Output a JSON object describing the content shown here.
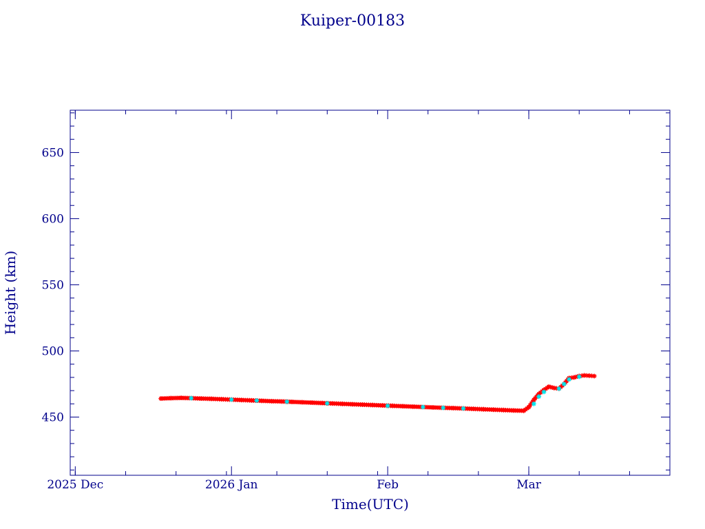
{
  "chart_data": {
    "type": "scatter",
    "title": "Kuiper-00183",
    "xlabel": "Time(UTC)",
    "ylabel": "Height (km)",
    "x_range": [
      "2025-11-30",
      "2026-03-29"
    ],
    "ylim": [
      406,
      682
    ],
    "y_ticks": [
      450,
      500,
      550,
      600,
      650
    ],
    "x_ticks": [
      {
        "date": "2025-12-01",
        "label": "2025 Dec"
      },
      {
        "date": "2026-01-01",
        "label": "2026 Jan"
      },
      {
        "date": "2026-02-01",
        "label": "Feb"
      },
      {
        "date": "2026-03-01",
        "label": "Mar"
      }
    ],
    "grid": false,
    "colors": {
      "axes": "#00008b",
      "primary_marker": "#ff0000",
      "secondary_marker": "#00e5ee"
    },
    "series": [
      {
        "marker": "star",
        "color": "#ff0000",
        "x": [
          "2025-12-18",
          "2025-12-20",
          "2025-12-22",
          "2025-12-24",
          "2025-12-26",
          "2025-12-28",
          "2025-12-30",
          "2026-01-01",
          "2026-01-03",
          "2026-01-05",
          "2026-01-07",
          "2026-01-09",
          "2026-01-11",
          "2026-01-13",
          "2026-01-15",
          "2026-01-17",
          "2026-01-19",
          "2026-01-21",
          "2026-01-23",
          "2026-01-25",
          "2026-01-27",
          "2026-01-29",
          "2026-01-31",
          "2026-02-02",
          "2026-02-04",
          "2026-02-06",
          "2026-02-08",
          "2026-02-10",
          "2026-02-12",
          "2026-02-14",
          "2026-02-16",
          "2026-02-18",
          "2026-02-20",
          "2026-02-22",
          "2026-02-24",
          "2026-02-26",
          "2026-02-28",
          "2026-03-01",
          "2026-03-02",
          "2026-03-03",
          "2026-03-04",
          "2026-03-05",
          "2026-03-06",
          "2026-03-07",
          "2026-03-08",
          "2026-03-09",
          "2026-03-10",
          "2026-03-11",
          "2026-03-12",
          "2026-03-13",
          "2026-03-14"
        ],
        "y": [
          464.0,
          464.3,
          464.5,
          464.3,
          464.0,
          463.8,
          463.5,
          463.2,
          462.9,
          462.6,
          462.3,
          462.0,
          461.8,
          461.5,
          461.2,
          460.9,
          460.6,
          460.3,
          460.0,
          459.7,
          459.4,
          459.1,
          458.8,
          458.5,
          458.2,
          457.9,
          457.6,
          457.3,
          457.0,
          456.8,
          456.5,
          456.2,
          455.9,
          455.6,
          455.3,
          455.0,
          454.8,
          457.5,
          463.0,
          467.5,
          470.5,
          473.0,
          472.0,
          471.5,
          475.0,
          479.5,
          480.0,
          481.0,
          481.5,
          481.3,
          481.0
        ]
      },
      {
        "marker": "star",
        "color": "#00e5ee",
        "x": [
          "2025-12-24",
          "2026-01-01",
          "2026-01-06",
          "2026-01-12",
          "2026-01-20",
          "2026-02-01",
          "2026-02-08",
          "2026-02-12",
          "2026-02-16",
          "2026-03-02",
          "2026-03-03",
          "2026-03-04",
          "2026-03-07",
          "2026-03-08",
          "2026-03-09",
          "2026-03-11"
        ],
        "y": [
          464.3,
          463.2,
          462.5,
          461.6,
          460.4,
          458.5,
          457.6,
          457.0,
          456.5,
          460.0,
          465.5,
          469.0,
          471.5,
          475.0,
          478.5,
          480.5
        ]
      }
    ]
  }
}
